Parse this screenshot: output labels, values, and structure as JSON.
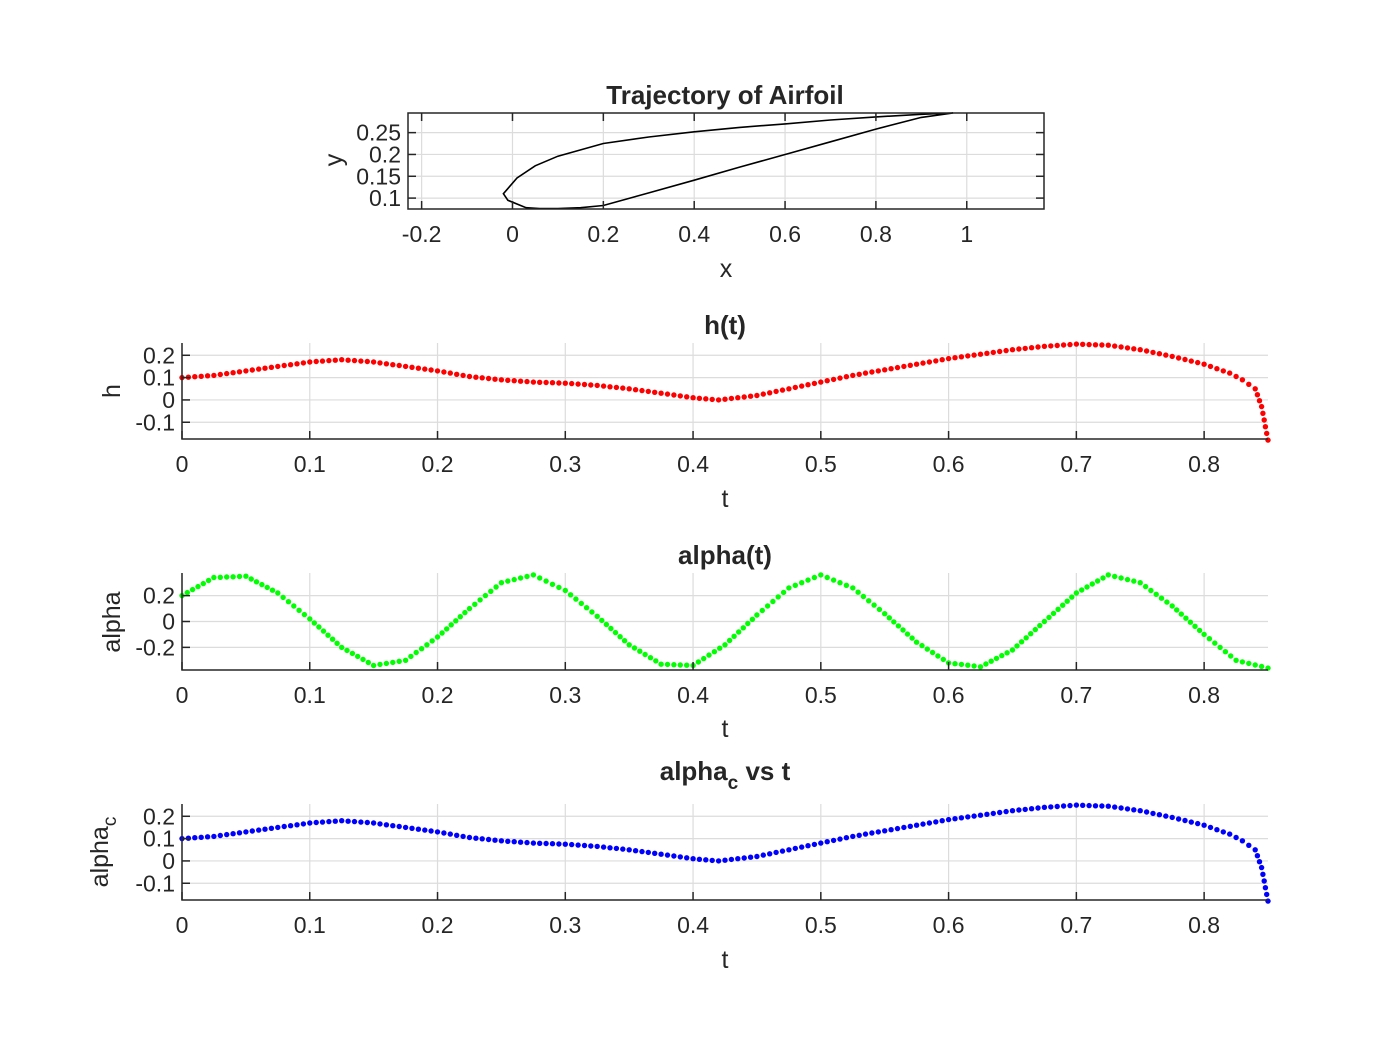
{
  "chart_data": [
    {
      "type": "line",
      "title": "Trajectory of Airfoil",
      "title_sub": "",
      "title_rest": "",
      "xlabel": "x",
      "ylabel": "y",
      "ylabel_sub": "",
      "xlim": [
        -0.23,
        1.17
      ],
      "ylim": [
        0.075,
        0.295
      ],
      "xticks": [
        -0.2,
        0,
        0.2,
        0.4,
        0.6,
        0.8,
        1
      ],
      "xtick_labels": [
        "-0.2",
        "0",
        "0.2",
        "0.4",
        "0.6",
        "0.8",
        "1"
      ],
      "yticks": [
        0.1,
        0.15,
        0.2,
        0.25
      ],
      "ytick_labels": [
        "0.1",
        "0.15",
        "0.2",
        "0.25"
      ],
      "grid": true,
      "series": [
        {
          "color": "#000000",
          "marker": "none",
          "x": [
            0.97,
            0.9,
            0.8,
            0.7,
            0.6,
            0.5,
            0.4,
            0.3,
            0.2,
            0.1,
            0.05,
            0.01,
            -0.02,
            -0.01,
            0.03,
            0.06,
            0.1,
            0.15,
            0.2,
            0.3,
            0.4,
            0.5,
            0.6,
            0.7,
            0.8,
            0.9,
            0.97
          ],
          "y": [
            0.295,
            0.292,
            0.286,
            0.279,
            0.27,
            0.262,
            0.252,
            0.24,
            0.225,
            0.196,
            0.174,
            0.146,
            0.11,
            0.095,
            0.078,
            0.076,
            0.076,
            0.078,
            0.083,
            0.112,
            0.141,
            0.171,
            0.2,
            0.229,
            0.258,
            0.285,
            0.295
          ]
        }
      ]
    },
    {
      "type": "scatter",
      "title": "h(t)",
      "title_sub": "",
      "title_rest": "",
      "xlabel": "t",
      "ylabel": "h",
      "ylabel_sub": "",
      "xlim": [
        0,
        0.85
      ],
      "ylim": [
        -0.175,
        0.255
      ],
      "xticks": [
        0,
        0.1,
        0.2,
        0.3,
        0.4,
        0.5,
        0.6,
        0.7,
        0.8
      ],
      "xtick_labels": [
        "0",
        "0.1",
        "0.2",
        "0.3",
        "0.4",
        "0.5",
        "0.6",
        "0.7",
        "0.8"
      ],
      "yticks": [
        -0.1,
        0,
        0.1,
        0.2
      ],
      "ytick_labels": [
        "-0.1",
        "0",
        "0.1",
        "0.2"
      ],
      "grid": true,
      "series": [
        {
          "color": "#ff0000",
          "marker": "dot",
          "x": [
            0,
            0.025,
            0.05,
            0.075,
            0.1,
            0.125,
            0.15,
            0.175,
            0.2,
            0.225,
            0.25,
            0.275,
            0.3,
            0.325,
            0.35,
            0.375,
            0.4,
            0.42,
            0.45,
            0.475,
            0.5,
            0.525,
            0.55,
            0.575,
            0.6,
            0.625,
            0.65,
            0.675,
            0.7,
            0.725,
            0.75,
            0.775,
            0.8,
            0.82,
            0.83,
            0.84,
            0.845,
            0.85
          ],
          "y": [
            0.1,
            0.11,
            0.13,
            0.15,
            0.17,
            0.18,
            0.17,
            0.15,
            0.13,
            0.105,
            0.09,
            0.08,
            0.075,
            0.065,
            0.05,
            0.03,
            0.01,
            0.0,
            0.02,
            0.05,
            0.08,
            0.11,
            0.135,
            0.16,
            0.185,
            0.205,
            0.225,
            0.24,
            0.25,
            0.245,
            0.225,
            0.195,
            0.16,
            0.12,
            0.09,
            0.05,
            -0.03,
            -0.18
          ]
        }
      ]
    },
    {
      "type": "scatter",
      "title": "alpha(t)",
      "title_sub": "",
      "title_rest": "",
      "xlabel": "t",
      "ylabel": "alpha",
      "ylabel_sub": "",
      "xlim": [
        0,
        0.85
      ],
      "ylim": [
        -0.375,
        0.375
      ],
      "xticks": [
        0,
        0.1,
        0.2,
        0.3,
        0.4,
        0.5,
        0.6,
        0.7,
        0.8
      ],
      "xtick_labels": [
        "0",
        "0.1",
        "0.2",
        "0.3",
        "0.4",
        "0.5",
        "0.6",
        "0.7",
        "0.8"
      ],
      "yticks": [
        -0.2,
        0,
        0.2
      ],
      "ytick_labels": [
        "-0.2",
        "0",
        "0.2"
      ],
      "grid": true,
      "series": [
        {
          "color": "#00ff00",
          "marker": "dot",
          "x": [
            0,
            0.025,
            0.05,
            0.075,
            0.1,
            0.125,
            0.15,
            0.175,
            0.2,
            0.225,
            0.25,
            0.275,
            0.3,
            0.325,
            0.35,
            0.375,
            0.4,
            0.425,
            0.45,
            0.475,
            0.5,
            0.525,
            0.55,
            0.575,
            0.6,
            0.625,
            0.65,
            0.675,
            0.7,
            0.725,
            0.75,
            0.775,
            0.8,
            0.825,
            0.85
          ],
          "y": [
            0.2,
            0.34,
            0.35,
            0.22,
            0.02,
            -0.2,
            -0.34,
            -0.3,
            -0.12,
            0.1,
            0.3,
            0.36,
            0.24,
            0.04,
            -0.18,
            -0.33,
            -0.34,
            -0.18,
            0.05,
            0.26,
            0.36,
            0.26,
            0.06,
            -0.16,
            -0.32,
            -0.35,
            -0.22,
            0.0,
            0.22,
            0.36,
            0.3,
            0.12,
            -0.1,
            -0.3,
            -0.36
          ]
        }
      ]
    },
    {
      "type": "scatter",
      "title": "alpha",
      "title_sub": "c",
      "title_rest": " vs t",
      "xlabel": "t",
      "ylabel": "alpha",
      "ylabel_sub": "c",
      "xlim": [
        0,
        0.85
      ],
      "ylim": [
        -0.175,
        0.255
      ],
      "xticks": [
        0,
        0.1,
        0.2,
        0.3,
        0.4,
        0.5,
        0.6,
        0.7,
        0.8
      ],
      "xtick_labels": [
        "0",
        "0.1",
        "0.2",
        "0.3",
        "0.4",
        "0.5",
        "0.6",
        "0.7",
        "0.8"
      ],
      "yticks": [
        -0.1,
        0,
        0.1,
        0.2
      ],
      "ytick_labels": [
        "-0.1",
        "0",
        "0.1",
        "0.2"
      ],
      "grid": true,
      "series": [
        {
          "color": "#0000ff",
          "marker": "dot",
          "x": [
            0,
            0.025,
            0.05,
            0.075,
            0.1,
            0.125,
            0.15,
            0.175,
            0.2,
            0.225,
            0.25,
            0.275,
            0.3,
            0.325,
            0.35,
            0.375,
            0.4,
            0.42,
            0.45,
            0.475,
            0.5,
            0.525,
            0.55,
            0.575,
            0.6,
            0.625,
            0.65,
            0.675,
            0.7,
            0.725,
            0.75,
            0.775,
            0.8,
            0.82,
            0.83,
            0.84,
            0.845,
            0.85
          ],
          "y": [
            0.1,
            0.11,
            0.13,
            0.15,
            0.17,
            0.18,
            0.17,
            0.15,
            0.13,
            0.105,
            0.09,
            0.08,
            0.075,
            0.065,
            0.05,
            0.03,
            0.01,
            0.0,
            0.02,
            0.05,
            0.08,
            0.11,
            0.135,
            0.16,
            0.185,
            0.205,
            0.225,
            0.24,
            0.25,
            0.245,
            0.225,
            0.195,
            0.16,
            0.12,
            0.09,
            0.05,
            -0.03,
            -0.18
          ]
        }
      ]
    }
  ]
}
